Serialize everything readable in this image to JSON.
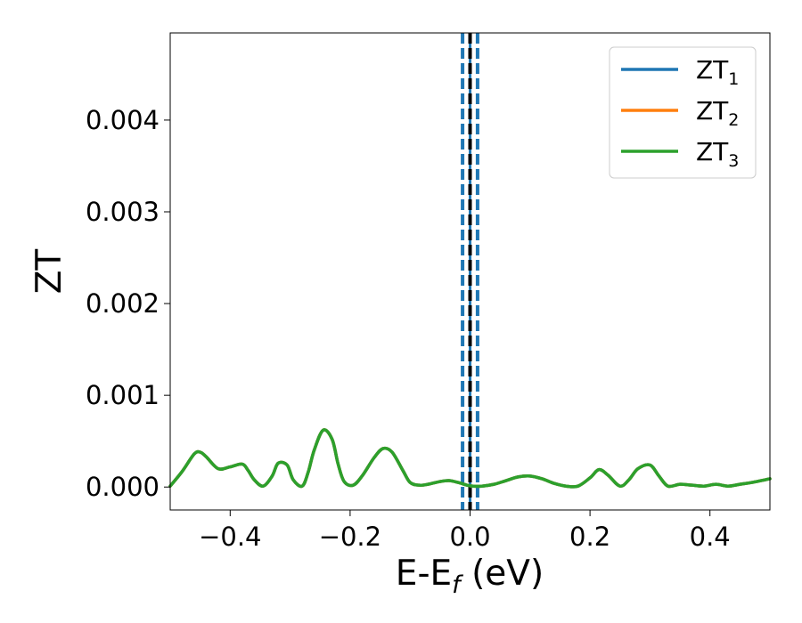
{
  "chart_data": {
    "type": "line",
    "title": "",
    "xlabel": "E-E",
    "xlabel_sub": "f",
    "xlabel_suffix": " (eV)",
    "ylabel": "ZT",
    "xlim": [
      -0.5,
      0.5
    ],
    "ylim": [
      -0.00025,
      0.00495
    ],
    "xticks": [
      -0.4,
      -0.2,
      0.0,
      0.2,
      0.4
    ],
    "xtick_labels": [
      "−0.4",
      "−0.2",
      "0.0",
      "0.2",
      "0.4"
    ],
    "yticks": [
      0.0,
      0.001,
      0.002,
      0.003,
      0.004
    ],
    "ytick_labels": [
      "0.000",
      "0.001",
      "0.002",
      "0.003",
      "0.004"
    ],
    "grid": false,
    "legend_position": "top-right",
    "x": [
      -0.5,
      -0.48,
      -0.46,
      -0.45,
      -0.44,
      -0.42,
      -0.4,
      -0.38,
      -0.37,
      -0.36,
      -0.345,
      -0.33,
      -0.32,
      -0.305,
      -0.295,
      -0.28,
      -0.27,
      -0.26,
      -0.245,
      -0.23,
      -0.22,
      -0.21,
      -0.195,
      -0.18,
      -0.16,
      -0.145,
      -0.13,
      -0.112,
      -0.1,
      -0.085,
      -0.07,
      -0.05,
      -0.035,
      -0.02,
      -0.005,
      0.005,
      0.02,
      0.04,
      0.06,
      0.08,
      0.1,
      0.12,
      0.14,
      0.16,
      0.18,
      0.2,
      0.215,
      0.23,
      0.25,
      0.265,
      0.28,
      0.3,
      0.315,
      0.33,
      0.35,
      0.37,
      0.39,
      0.41,
      0.43,
      0.45,
      0.47,
      0.5
    ],
    "series": [
      {
        "name": "ZT",
        "sub": "1",
        "color": "#1f77b4",
        "values": [
          1e-05,
          0.00017,
          0.00036,
          0.00038,
          0.00033,
          0.0002,
          0.00022,
          0.00025,
          0.00018,
          8e-05,
          1e-05,
          0.00012,
          0.00026,
          0.00024,
          8e-05,
          1e-05,
          0.00016,
          0.0004,
          0.00062,
          0.00052,
          0.00025,
          6e-05,
          2e-05,
          0.00012,
          0.00032,
          0.00042,
          0.00038,
          0.00018,
          5e-05,
          2e-05,
          3e-05,
          6e-05,
          7e-05,
          5e-05,
          2e-05,
          1e-05,
          1e-05,
          3e-05,
          7e-05,
          0.00011,
          0.00012,
          9e-05,
          4e-05,
          1e-05,
          1e-05,
          0.0001,
          0.00019,
          0.00013,
          1e-05,
          8e-05,
          0.0002,
          0.00024,
          0.00012,
          1e-05,
          3e-05,
          2e-05,
          1e-05,
          3e-05,
          1e-05,
          3e-05,
          5e-05,
          9e-05
        ]
      },
      {
        "name": "ZT",
        "sub": "2",
        "color": "#ff7f0e",
        "values": [
          1e-05,
          0.00017,
          0.00036,
          0.00038,
          0.00033,
          0.0002,
          0.00022,
          0.00025,
          0.00018,
          8e-05,
          1e-05,
          0.00012,
          0.00026,
          0.00024,
          8e-05,
          1e-05,
          0.00016,
          0.0004,
          0.00062,
          0.00052,
          0.00025,
          6e-05,
          2e-05,
          0.00012,
          0.00032,
          0.00042,
          0.00038,
          0.00018,
          5e-05,
          2e-05,
          3e-05,
          6e-05,
          7e-05,
          5e-05,
          2e-05,
          1e-05,
          1e-05,
          3e-05,
          7e-05,
          0.00011,
          0.00012,
          9e-05,
          4e-05,
          1e-05,
          1e-05,
          0.0001,
          0.00019,
          0.00013,
          1e-05,
          8e-05,
          0.0002,
          0.00024,
          0.00012,
          1e-05,
          3e-05,
          2e-05,
          1e-05,
          3e-05,
          1e-05,
          3e-05,
          5e-05,
          9e-05
        ]
      },
      {
        "name": "ZT",
        "sub": "3",
        "color": "#2ca02c",
        "values": [
          1e-05,
          0.00017,
          0.00036,
          0.00038,
          0.00033,
          0.0002,
          0.00022,
          0.00025,
          0.00018,
          8e-05,
          1e-05,
          0.00012,
          0.00026,
          0.00024,
          8e-05,
          1e-05,
          0.00016,
          0.0004,
          0.00062,
          0.00052,
          0.00025,
          6e-05,
          2e-05,
          0.00012,
          0.00032,
          0.00042,
          0.00038,
          0.00018,
          5e-05,
          2e-05,
          3e-05,
          6e-05,
          7e-05,
          5e-05,
          2e-05,
          1e-05,
          1e-05,
          3e-05,
          7e-05,
          0.00011,
          0.00012,
          9e-05,
          4e-05,
          1e-05,
          1e-05,
          0.0001,
          0.00019,
          0.00013,
          1e-05,
          8e-05,
          0.0002,
          0.00024,
          0.00012,
          1e-05,
          3e-05,
          2e-05,
          1e-05,
          3e-05,
          1e-05,
          3e-05,
          5e-05,
          9e-05
        ]
      }
    ],
    "vertical_lines": [
      {
        "x": -0.0125,
        "style": "dashed",
        "color": "#1f77b4"
      },
      {
        "x": 0.0,
        "style": "solid",
        "color": "#1f77b4"
      },
      {
        "x": 0.0,
        "style": "dashed",
        "color": "#000000"
      },
      {
        "x": 0.0125,
        "style": "dashed",
        "color": "#1f77b4"
      }
    ]
  }
}
